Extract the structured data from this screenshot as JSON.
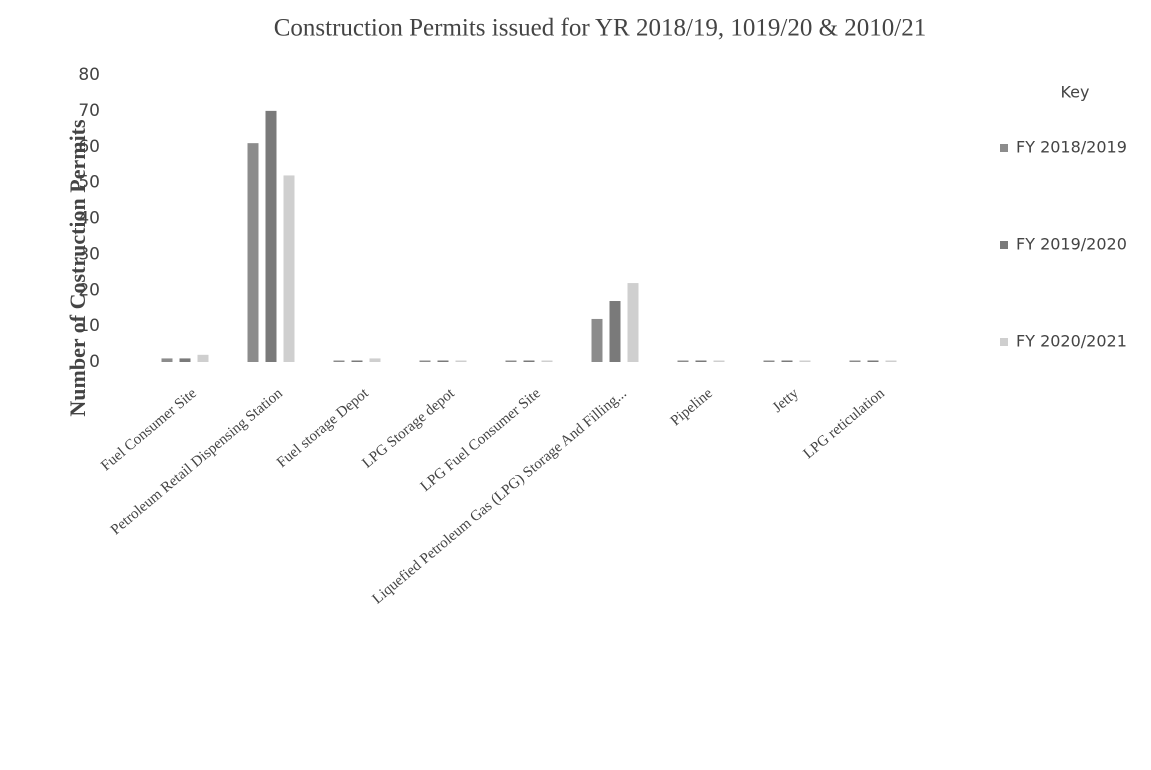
{
  "chart_data": {
    "type": "bar",
    "title": "Construction Permits issued for YR 2018/19, 1019/20 & 2010/21",
    "y_label": "Number of Costruction Permits",
    "categories": [
      "Fuel Consumer Site",
      "Petroleum Retail Dispensing Station",
      "Fuel storage Depot",
      "LPG Storage depot",
      "LPG Fuel Consumer Site",
      "Liquefied Petroleum Gas (LPG) Storage And Filling...",
      "Pipeline",
      "Jetty",
      "LPG reticulation"
    ],
    "series": [
      {
        "name": "FY 2018/2019",
        "color": "#8c8c8c",
        "values": [
          1,
          61,
          0,
          0,
          0,
          12,
          0,
          0,
          0
        ]
      },
      {
        "name": "FY 2019/2020",
        "color": "#7a7a7a",
        "values": [
          1,
          70,
          0,
          0,
          0,
          17,
          0,
          0,
          0
        ]
      },
      {
        "name": "FY 2020/2021",
        "color": "#cfcfcf",
        "values": [
          2,
          52,
          1,
          0,
          0,
          22,
          0,
          0,
          0
        ]
      }
    ],
    "ylim": [
      0,
      80
    ],
    "yticks": [
      0,
      10,
      20,
      30,
      40,
      50,
      60,
      70,
      80
    ],
    "grid": false,
    "legend_title": "Key",
    "legend": "right"
  }
}
